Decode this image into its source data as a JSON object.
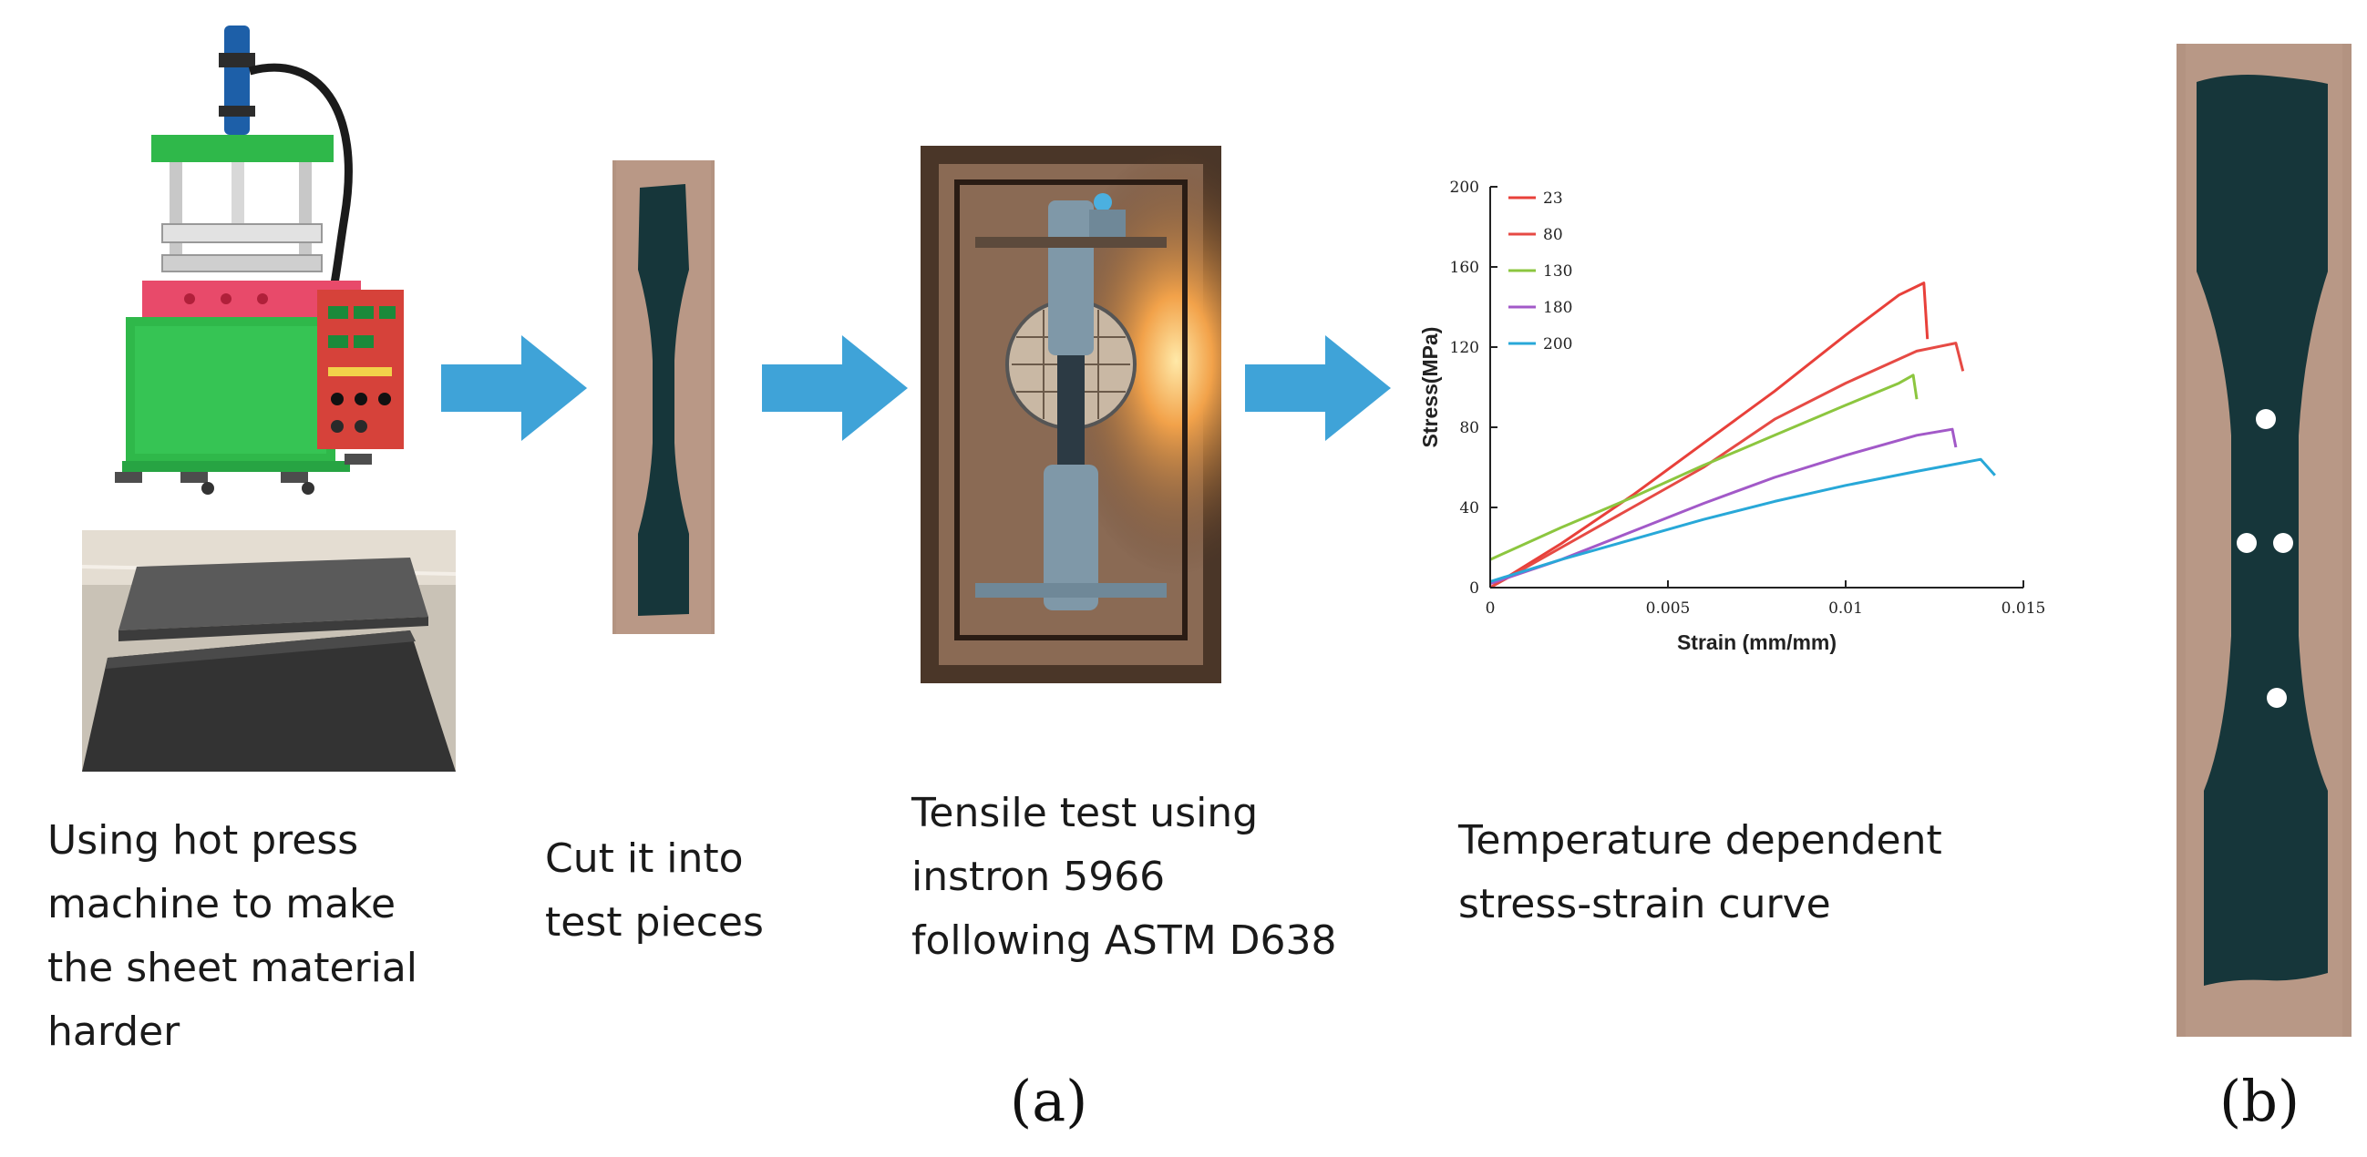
{
  "steps": [
    {
      "caption": "Using hot press\nmachine to make\nthe sheet material\nharder"
    },
    {
      "caption": "Cut  it into\ntest pieces"
    },
    {
      "caption": "Tensile test using\ninstron 5966\nfollowing ASTM D638"
    },
    {
      "caption": "Temperature dependent\nstress-strain curve"
    }
  ],
  "panel_labels": {
    "a": "(a)",
    "b": "(b)"
  },
  "colors": {
    "arrow": "#3fa3d8",
    "press_green": "#2fb84a",
    "specimen": "#16363a",
    "wood": "#b39381"
  },
  "chart_data": {
    "type": "line",
    "xlabel": "Strain (mm/mm)",
    "ylabel": "Stress(MPa)",
    "xlim": [
      0,
      0.015
    ],
    "ylim": [
      0,
      200
    ],
    "x_ticks": [
      "0",
      "0.005",
      "0.01",
      "0.015"
    ],
    "y_ticks": [
      "0",
      "40",
      "80",
      "120",
      "160",
      "200"
    ],
    "legend_position": "top-left",
    "series": [
      {
        "name": "23",
        "color": "#e8403a",
        "points": [
          [
            0,
            0
          ],
          [
            0.002,
            22
          ],
          [
            0.004,
            46
          ],
          [
            0.006,
            72
          ],
          [
            0.008,
            98
          ],
          [
            0.01,
            126
          ],
          [
            0.0115,
            146
          ],
          [
            0.0122,
            152
          ],
          [
            0.0123,
            124
          ]
        ]
      },
      {
        "name": "80",
        "color": "#e64a44",
        "points": [
          [
            0,
            0
          ],
          [
            0.002,
            20
          ],
          [
            0.004,
            40
          ],
          [
            0.006,
            60
          ],
          [
            0.008,
            84
          ],
          [
            0.01,
            102
          ],
          [
            0.012,
            118
          ],
          [
            0.0131,
            122
          ],
          [
            0.0133,
            108
          ]
        ]
      },
      {
        "name": "130",
        "color": "#8cc63f",
        "points": [
          [
            0,
            14
          ],
          [
            0.002,
            30
          ],
          [
            0.004,
            45
          ],
          [
            0.006,
            61
          ],
          [
            0.008,
            76
          ],
          [
            0.01,
            91
          ],
          [
            0.0115,
            102
          ],
          [
            0.0119,
            106
          ],
          [
            0.012,
            94
          ]
        ]
      },
      {
        "name": "180",
        "color": "#a259c8",
        "points": [
          [
            0,
            2
          ],
          [
            0.002,
            14
          ],
          [
            0.004,
            28
          ],
          [
            0.006,
            42
          ],
          [
            0.008,
            55
          ],
          [
            0.01,
            66
          ],
          [
            0.012,
            76
          ],
          [
            0.013,
            79
          ],
          [
            0.0131,
            70
          ]
        ]
      },
      {
        "name": "200",
        "color": "#28a8d8",
        "points": [
          [
            0,
            3
          ],
          [
            0.002,
            14
          ],
          [
            0.004,
            24
          ],
          [
            0.006,
            34
          ],
          [
            0.008,
            43
          ],
          [
            0.01,
            51
          ],
          [
            0.012,
            58
          ],
          [
            0.0138,
            64
          ],
          [
            0.0142,
            56
          ]
        ]
      }
    ]
  }
}
